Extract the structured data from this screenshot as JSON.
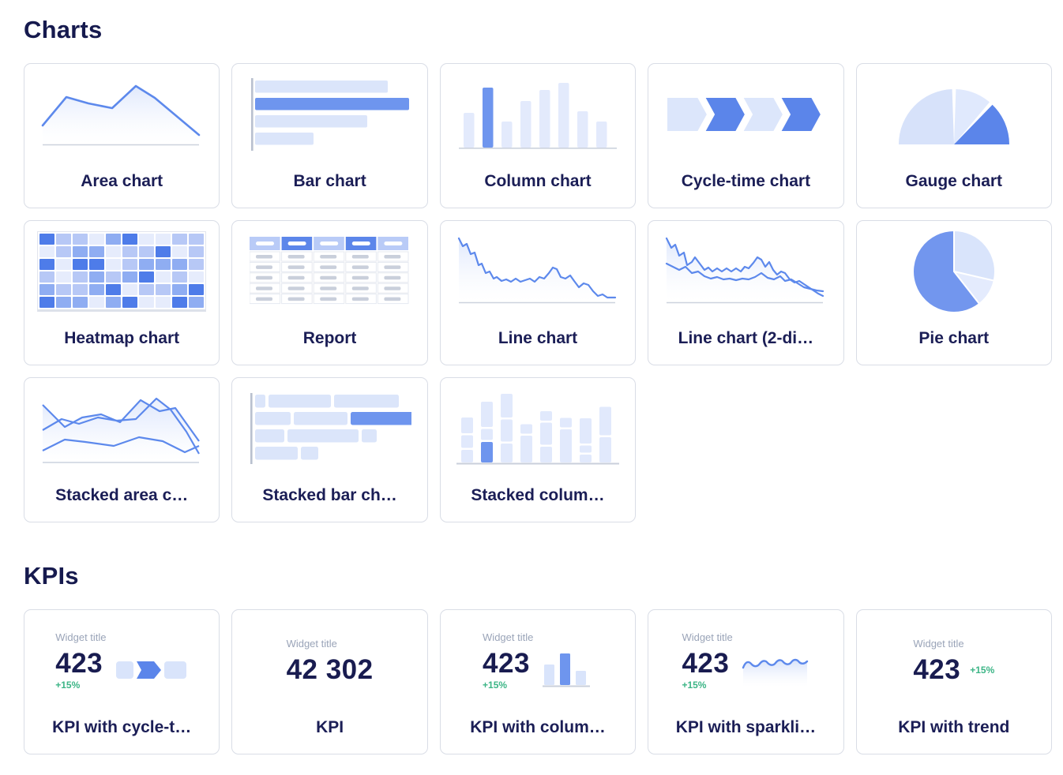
{
  "colors": {
    "accent_blue": "#6e95ee",
    "light_blue_fill": "#dce6fb",
    "navy_text": "#191c52",
    "muted_title_gray": "#9aa4b8",
    "positive_green": "#3cb586",
    "card_border": "#d9dde6"
  },
  "charts": {
    "heading": "Charts",
    "items": [
      {
        "id": "area-chart",
        "label": "Area chart"
      },
      {
        "id": "bar-chart",
        "label": "Bar chart"
      },
      {
        "id": "column-chart",
        "label": "Column chart"
      },
      {
        "id": "cycle-time-chart",
        "label": "Cycle-time chart"
      },
      {
        "id": "gauge-chart",
        "label": "Gauge chart"
      },
      {
        "id": "heatmap-chart",
        "label": "Heatmap chart"
      },
      {
        "id": "report",
        "label": "Report"
      },
      {
        "id": "line-chart",
        "label": "Line chart"
      },
      {
        "id": "line-chart-2-dimensions",
        "label": "Line chart (2-di…"
      },
      {
        "id": "pie-chart",
        "label": "Pie chart"
      },
      {
        "id": "stacked-area-chart",
        "label": "Stacked area c…"
      },
      {
        "id": "stacked-bar-chart",
        "label": "Stacked bar ch…"
      },
      {
        "id": "stacked-column-chart",
        "label": "Stacked colum…"
      }
    ],
    "heatmap_pattern": [
      [
        3,
        1,
        1,
        0,
        2,
        3,
        0,
        0,
        1,
        1
      ],
      [
        0,
        1,
        2,
        2,
        0,
        1,
        1,
        3,
        0,
        1
      ],
      [
        3,
        0,
        3,
        3,
        0,
        1,
        2,
        2,
        2,
        1
      ],
      [
        1,
        0,
        1,
        2,
        1,
        2,
        3,
        0,
        1,
        0
      ],
      [
        2,
        1,
        1,
        2,
        3,
        0,
        1,
        1,
        2,
        3
      ],
      [
        3,
        2,
        2,
        0,
        2,
        3,
        0,
        0,
        3,
        2
      ]
    ]
  },
  "kpis": {
    "heading": "KPIs",
    "widget_title": "Widget title",
    "items": [
      {
        "id": "kpi-with-cycle-time",
        "label": "KPI with cycle-t…",
        "value": "423",
        "delta": "+15%"
      },
      {
        "id": "kpi",
        "label": "KPI",
        "value": "42 302"
      },
      {
        "id": "kpi-with-column",
        "label": "KPI with colum…",
        "value": "423",
        "delta": "+15%"
      },
      {
        "id": "kpi-with-sparkline",
        "label": "KPI with sparkli…",
        "value": "423",
        "delta": "+15%"
      },
      {
        "id": "kpi-with-trend",
        "label": "KPI with trend",
        "value": "423",
        "delta": "+15%"
      }
    ]
  }
}
